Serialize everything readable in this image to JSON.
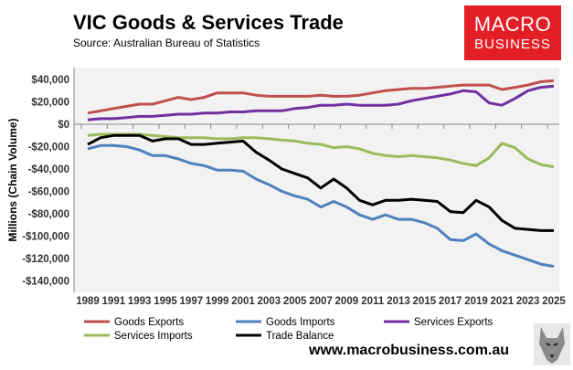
{
  "header": {
    "title": "VIC Goods & Services Trade",
    "source": "Source:  Australian Bureau of Statistics",
    "logo_line1": "MACRO",
    "logo_line2": "BUSINESS"
  },
  "footer": {
    "url": "www.macrobusiness.com.au"
  },
  "chart_data": {
    "type": "line",
    "title": "VIC Goods & Services Trade",
    "ylabel": "Millions (Chain Volume)",
    "xlabel": "",
    "ylim": [
      -140000,
      40000
    ],
    "yticks": [
      40000,
      20000,
      0,
      -20000,
      -40000,
      -60000,
      -80000,
      -100000,
      -120000,
      -140000
    ],
    "ytick_labels": [
      "$40,000",
      "$20,000",
      "$0",
      "-$20,000",
      "-$40,000",
      "-$60,000",
      "-$80,000",
      "-$100,000",
      "-$120,000",
      "-$140,000"
    ],
    "xtick_labels": [
      "1989",
      "1991",
      "1993",
      "1995",
      "1997",
      "1999",
      "2001",
      "2003",
      "2005",
      "2007",
      "2009",
      "2011",
      "2013",
      "2015",
      "2017",
      "2019",
      "2021",
      "2023",
      "2025"
    ],
    "x": [
      1989,
      1990,
      1991,
      1992,
      1993,
      1994,
      1995,
      1996,
      1997,
      1998,
      1999,
      2000,
      2001,
      2002,
      2003,
      2004,
      2005,
      2006,
      2007,
      2008,
      2009,
      2010,
      2011,
      2012,
      2013,
      2014,
      2015,
      2016,
      2017,
      2018,
      2019,
      2020,
      2021,
      2022,
      2023,
      2024,
      2025
    ],
    "legend_position": "bottom",
    "series": [
      {
        "name": "Goods Exports",
        "color": "#c0504d",
        "values": [
          10000,
          12000,
          14000,
          16000,
          18000,
          18000,
          21000,
          24000,
          22000,
          24000,
          28000,
          28000,
          28000,
          26000,
          25000,
          25000,
          25000,
          25000,
          26000,
          25000,
          25000,
          26000,
          28000,
          30000,
          31000,
          32000,
          32000,
          33000,
          34000,
          35000,
          35000,
          35000,
          31000,
          33000,
          35000,
          38000,
          39000
        ]
      },
      {
        "name": "Goods Imports",
        "color": "#4f81bd",
        "values": [
          -22000,
          -19000,
          -19000,
          -20000,
          -23000,
          -28000,
          -28000,
          -31000,
          -35000,
          -37000,
          -41000,
          -41000,
          -42000,
          -49000,
          -54000,
          -60000,
          -64000,
          -67000,
          -74000,
          -69000,
          -74000,
          -81000,
          -85000,
          -81000,
          -85000,
          -85000,
          -88000,
          -93000,
          -103000,
          -104000,
          -98000,
          -107000,
          -113000,
          -117000,
          -121000,
          -125000,
          -127000
        ]
      },
      {
        "name": "Services Exports",
        "color": "#7030a0",
        "values": [
          4000,
          5000,
          5000,
          6000,
          7000,
          7000,
          8000,
          9000,
          9000,
          10000,
          10000,
          11000,
          11000,
          12000,
          12000,
          12000,
          14000,
          15000,
          17000,
          17000,
          18000,
          17000,
          17000,
          17000,
          18000,
          21000,
          23000,
          25000,
          27000,
          30000,
          29000,
          19000,
          17000,
          23000,
          30000,
          33000,
          34000
        ]
      },
      {
        "name": "Services Imports",
        "color": "#9bbb59",
        "values": [
          -10000,
          -9000,
          -9000,
          -9000,
          -9000,
          -10000,
          -11000,
          -12000,
          -12000,
          -12000,
          -13000,
          -13000,
          -12000,
          -12000,
          -13000,
          -14000,
          -15000,
          -17000,
          -18000,
          -21000,
          -20000,
          -22000,
          -26000,
          -28000,
          -29000,
          -28000,
          -29000,
          -30000,
          -32000,
          -35000,
          -37000,
          -30000,
          -17000,
          -21000,
          -31000,
          -36000,
          -38000
        ]
      },
      {
        "name": "Trade Balance",
        "color": "#000000",
        "values": [
          -18000,
          -12000,
          -10000,
          -10000,
          -10000,
          -15000,
          -13000,
          -13000,
          -18000,
          -18000,
          -17000,
          -16000,
          -15000,
          -25000,
          -32000,
          -40000,
          -44000,
          -48000,
          -57000,
          -49000,
          -57000,
          -68000,
          -72000,
          -68000,
          -68000,
          -67000,
          -68000,
          -69000,
          -78000,
          -79000,
          -68000,
          -74000,
          -86000,
          -93000,
          -94000,
          -95000,
          -95000
        ]
      }
    ]
  }
}
